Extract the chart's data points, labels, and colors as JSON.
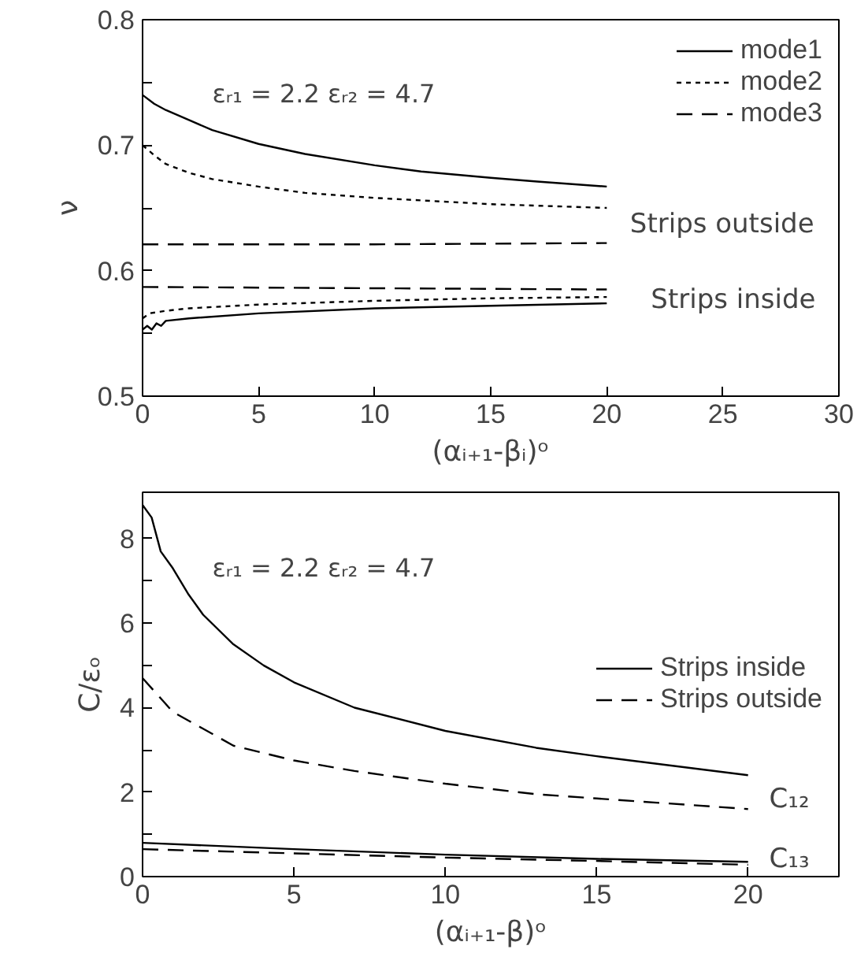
{
  "chart_data": [
    {
      "type": "line",
      "xlabel": "(αᵢ₊₁-βᵢ)ᵒ",
      "ylabel": "ν",
      "xlim": [
        0,
        30
      ],
      "xticks": [
        0,
        5,
        10,
        15,
        20,
        25,
        30
      ],
      "ylim": [
        0.5,
        0.8
      ],
      "yticks": [
        0.5,
        {
          "value": 0.55,
          "label": null
        },
        0.6,
        {
          "value": 0.65,
          "label": null
        },
        0.7,
        {
          "value": 0.75,
          "label": null
        },
        0.8
      ],
      "grid": false,
      "legend": "top right",
      "annotations": [
        "εᵣ₁ = 2.2    εᵣ₂ = 4.7",
        "Strips outside",
        "Strips inside"
      ],
      "series": [
        {
          "name": "mode1",
          "color": "#000000",
          "line_style": "solid",
          "x": [
            0,
            0.5,
            1,
            2,
            3,
            5,
            7,
            10,
            12,
            15,
            17,
            20
          ],
          "values": [
            0.74,
            0.733,
            0.728,
            0.72,
            0.712,
            0.701,
            0.693,
            0.684,
            0.679,
            0.674,
            0.671,
            0.667
          ]
        },
        {
          "name": "mode2",
          "color": "#000000",
          "line_style": "dotted",
          "x": [
            0,
            0.5,
            1,
            2,
            3,
            5,
            7,
            10,
            15,
            20
          ],
          "values": [
            0.7,
            0.692,
            0.685,
            0.678,
            0.673,
            0.667,
            0.662,
            0.658,
            0.653,
            0.65
          ]
        },
        {
          "name": "mode3",
          "color": "#000000",
          "line_style": "dashed",
          "x": [
            0,
            10,
            20
          ],
          "values": [
            0.621,
            0.621,
            0.622
          ]
        },
        {
          "color": "#000000",
          "line_style": "dashed",
          "x": [
            0,
            10,
            20
          ],
          "values": [
            0.587,
            0.586,
            0.585
          ]
        },
        {
          "color": "#000000",
          "line_style": "dotted",
          "x": [
            0,
            0.3,
            1,
            2,
            5,
            10,
            15,
            20
          ],
          "values": [
            0.562,
            0.566,
            0.568,
            0.57,
            0.573,
            0.576,
            0.578,
            0.579
          ]
        },
        {
          "color": "#000000",
          "line_style": "solid",
          "x": [
            0,
            0.2,
            0.4,
            0.6,
            0.8,
            1,
            2,
            5,
            10,
            15,
            20
          ],
          "values": [
            0.553,
            0.556,
            0.553,
            0.558,
            0.556,
            0.56,
            0.562,
            0.566,
            0.57,
            0.572,
            0.574
          ]
        }
      ]
    },
    {
      "type": "line",
      "xlabel": "(αᵢ₊₁-β)ᵒ",
      "ylabel": "C/εₒ",
      "xlim": [
        0,
        23
      ],
      "xticks": [
        0,
        5,
        10,
        15,
        20
      ],
      "ylim": [
        0,
        9.1
      ],
      "yticks": [
        0,
        {
          "value": 1,
          "label": null
        },
        2,
        {
          "value": 3,
          "label": null
        },
        4,
        {
          "value": 5,
          "label": null
        },
        6,
        {
          "value": 7,
          "label": null
        },
        8
      ],
      "grid": false,
      "legend": "right",
      "annotations": [
        "εᵣ₁ = 2.2    εᵣ₂ = 4.7",
        "C₁₂",
        "C₁₃"
      ],
      "series": [
        {
          "name": "Strips inside",
          "color": "#000000",
          "line_style": "solid",
          "x": [
            0,
            0.3,
            0.6,
            1,
            1.5,
            2,
            3,
            4,
            5,
            7,
            10,
            13,
            15,
            20
          ],
          "values": [
            8.8,
            8.5,
            7.7,
            7.3,
            6.7,
            6.2,
            5.5,
            5.0,
            4.6,
            4.0,
            3.45,
            3.05,
            2.85,
            2.4
          ]
        },
        {
          "name": "Strips outside",
          "color": "#000000",
          "line_style": "dashed",
          "x": [
            0,
            0.5,
            1,
            2,
            3,
            5,
            7,
            10,
            13,
            15,
            20
          ],
          "values": [
            4.7,
            4.3,
            3.9,
            3.5,
            3.1,
            2.75,
            2.5,
            2.2,
            1.95,
            1.85,
            1.6
          ]
        },
        {
          "color": "#000000",
          "line_style": "solid",
          "x": [
            0,
            5,
            10,
            15,
            20
          ],
          "values": [
            0.8,
            0.65,
            0.52,
            0.42,
            0.35
          ]
        },
        {
          "color": "#000000",
          "line_style": "dashed",
          "x": [
            0,
            5,
            10,
            15,
            20
          ],
          "values": [
            0.65,
            0.55,
            0.45,
            0.37,
            0.28
          ]
        }
      ]
    }
  ]
}
